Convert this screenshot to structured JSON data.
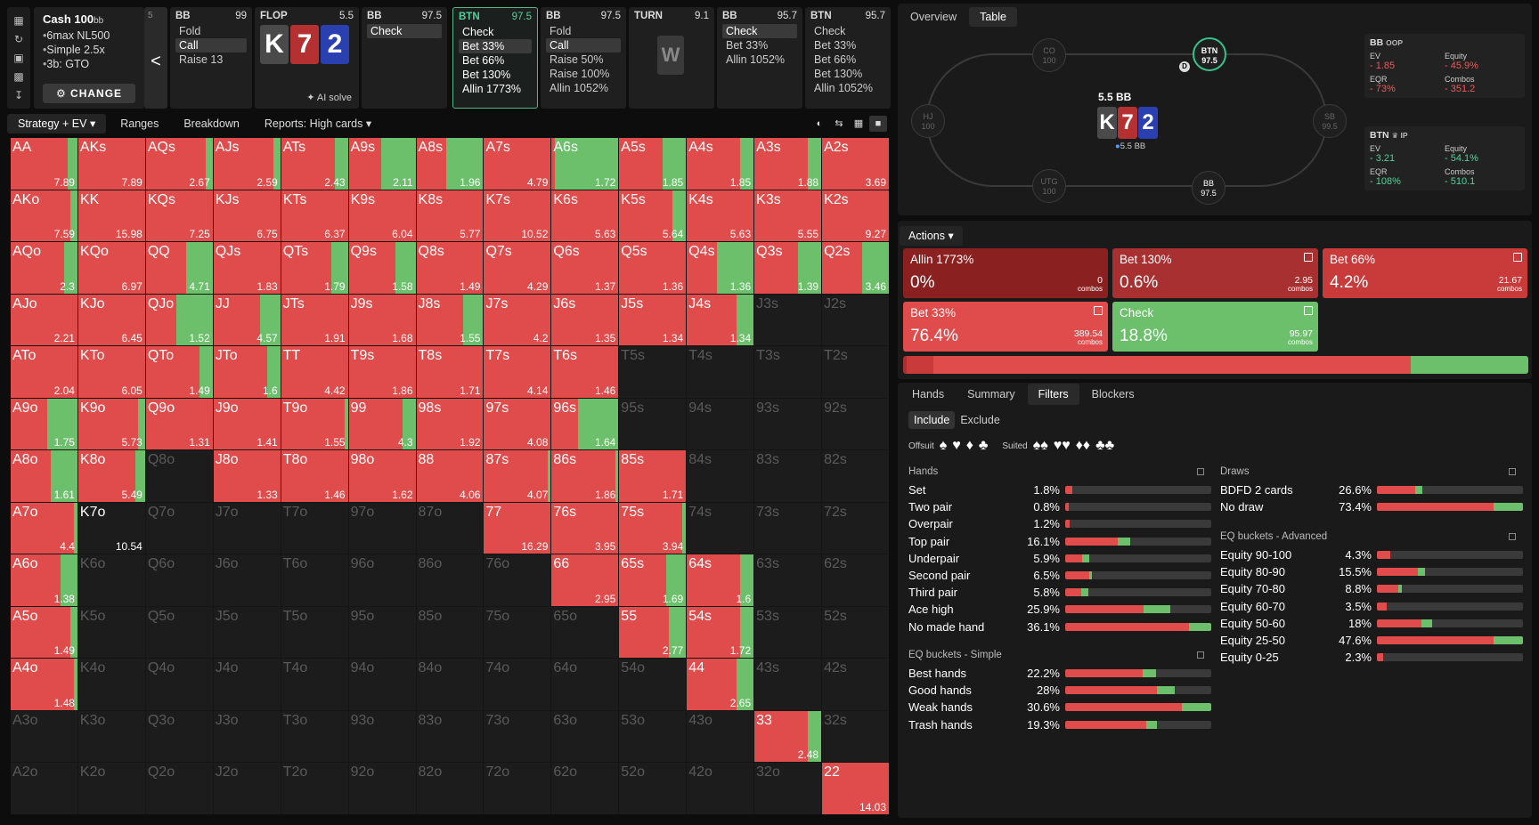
{
  "rail_icons": [
    "bookmark-icon",
    "history-icon",
    "save-icon",
    "gamepad-icon",
    "text-cursor-icon"
  ],
  "cash": {
    "title": "Cash",
    "stack": "100",
    "stack_unit": "bb",
    "items": [
      "6max NL500",
      "Simple 2.5x",
      "3b: GTO"
    ],
    "change_label": "CHANGE"
  },
  "back": {
    "num": "5",
    "arrow": "<"
  },
  "nodes": [
    {
      "player": "BB",
      "value": "99",
      "options": [
        "Fold",
        "Call",
        "Raise 13"
      ],
      "selected": 1
    },
    {
      "player": "BB",
      "value": "97.5",
      "options": [
        "Check"
      ],
      "selected": 0
    },
    {
      "player": "BTN",
      "value": "97.5",
      "options": [
        "Check",
        "Bet 33%",
        "Bet 66%",
        "Bet 130%",
        "Allin 1773%"
      ],
      "selected": 1,
      "active": true
    },
    {
      "player": "BB",
      "value": "97.5",
      "options": [
        "Fold",
        "Call",
        "Raise 50%",
        "Raise 100%",
        "Allin 1052%"
      ],
      "selected": 1
    },
    {
      "player": "BB",
      "value": "95.7",
      "options": [
        "Check",
        "Bet 33%",
        "Allin 1052%"
      ],
      "selected": 0
    },
    {
      "player": "BTN",
      "value": "95.7",
      "options": [
        "Check",
        "Bet 33%",
        "Bet 66%",
        "Bet 130%",
        "Allin 1052%"
      ],
      "selected": -1
    }
  ],
  "flop": {
    "label": "FLOP",
    "pot": "5.5",
    "cards": [
      "K",
      "7",
      "2"
    ],
    "ai_solve": "AI solve"
  },
  "turn": {
    "label": "TURN",
    "pot": "9.1",
    "card": "W"
  },
  "left_tabs": {
    "strategy": "Strategy + EV",
    "ranges": "Ranges",
    "breakdown": "Breakdown",
    "reports": "Reports: High cards"
  },
  "colors": {
    "bet": "#e04b4b",
    "check": "#6cc06c",
    "allin": "#8a2020",
    "bet130": "#a83030"
  },
  "matrix": [
    [
      "AA|0.85|7.89",
      "AKs|1|7.89",
      "AQs|0.9|2.67",
      "AJs|0.9|2.59",
      "ATs|0.8|2.43",
      "A9s|0.48|2.11",
      "A8s|0.45|1.96",
      "A7s|1|4.79",
      "A6s|0.05|1.72",
      "A5s|0.65|1.85",
      "A4s|0.8|1.85",
      "A3s|0.8|1.88",
      "A2s|1|3.69"
    ],
    [
      "AKo|0.9|7.59",
      "KK|1|15.98",
      "KQs|1|7.25",
      "KJs|1|6.75",
      "KTs|1|6.37",
      "K9s|1|6.04",
      "K8s|1|5.77",
      "K7s|1|10.52",
      "K6s|1|5.63",
      "K5s|0.8|5.64",
      "K4s|1|5.63",
      "K3s|1|5.55",
      "K2s|1|9.27"
    ],
    [
      "AQo|0.8|2.3",
      "KQo|1|6.97",
      "QQ|0.6|4.71",
      "QJs|1|1.83",
      "QTs|0.75|1.79",
      "Q9s|0.7|1.58",
      "Q8s|1|1.49",
      "Q7s|1|4.29",
      "Q6s|1|1.37",
      "Q5s|1|1.36",
      "Q4s|0.45|1.36",
      "Q3s|0.65|1.39",
      "Q2s|0.6|3.46"
    ],
    [
      "AJo|1|2.21",
      "KJo|1|6.45",
      "QJo|0.45|1.52",
      "JJ|0.7|4.57",
      "JTs|1|1.91",
      "J9s|1|1.68",
      "J8s|0.7|1.55",
      "J7s|1|4.2",
      "J6s|1|1.35",
      "J5s|1|1.34",
      "J4s|0.75|1.34",
      "J3s|0|",
      "J2s|0|"
    ],
    [
      "ATo|1|2.04",
      "KTo|1|6.05",
      "QTo|0.8|1.49",
      "JTo|0.8|1.6",
      "TT|1|4.42",
      "T9s|1|1.86",
      "T8s|1|1.71",
      "T7s|1|4.14",
      "T6s|1|1.46",
      "T5s|0|",
      "T4s|0|",
      "T3s|0|",
      "T2s|0|"
    ],
    [
      "A9o|0.55|1.75",
      "K9o|0.9|5.73",
      "Q9o|1|1.31",
      "J9o|1|1.41",
      "T9o|0.95|1.55",
      "99|0.8|4.3",
      "98s|1|1.92",
      "97s|1|4.08",
      "96s|0.4|1.64",
      "95s|0|",
      "94s|0|",
      "93s|0|",
      "92s|0|"
    ],
    [
      "A8o|0.6|1.61",
      "K8o|0.85|5.49",
      "Q8o|0|",
      "J8o|1|1.33",
      "T8o|1|1.46",
      "98o|1|1.62",
      "88|1|4.06",
      "87s|0.95|4.07",
      "86s|0.95|1.86",
      "85s|1|1.71",
      "84s|0|",
      "83s|0|",
      "82s|0|"
    ],
    [
      "A7o|0.95|4.4",
      "K7o|0|10.54",
      "Q7o|0|",
      "J7o|0|",
      "T7o|0|",
      "97o|0|",
      "87o|0|",
      "77|1|16.29",
      "76s|1|3.95",
      "75s|0.95|3.94",
      "74s|0|",
      "73s|0|",
      "72s|0|"
    ],
    [
      "A6o|0.75|1.38",
      "K6o|0|",
      "Q6o|0|",
      "J6o|0|",
      "T6o|0|",
      "96o|0|",
      "86o|0|",
      "76o|0|",
      "66|1|2.95",
      "65s|0.7|1.69",
      "64s|0.8|1.6",
      "63s|0|",
      "62s|0|"
    ],
    [
      "A5o|0.9|1.49",
      "K5o|0|",
      "Q5o|0|",
      "J5o|0|",
      "T5o|0|",
      "95o|0|",
      "85o|0|",
      "75o|0|",
      "65o|0|",
      "55|0.75|2.77",
      "54s|0.8|1.72",
      "53s|0|",
      "52s|0|"
    ],
    [
      "A4o|0.95|1.48",
      "K4o|0|",
      "Q4o|0|",
      "J4o|0|",
      "T4o|0|",
      "94o|0|",
      "84o|0|",
      "74o|0|",
      "64o|0|",
      "54o|0|",
      "44|0.75|2.65",
      "43s|0|",
      "42s|0|"
    ],
    [
      "A3o|0|",
      "K3o|0|",
      "Q3o|0|",
      "J3o|0|",
      "T3o|0|",
      "93o|0|",
      "83o|0|",
      "73o|0|",
      "63o|0|",
      "53o|0|",
      "43o|0|",
      "33|0.8|2.48",
      "32s|0|"
    ],
    [
      "A2o|0|",
      "K2o|0|",
      "Q2o|0|",
      "J2o|0|",
      "T2o|0|",
      "92o|0|",
      "82o|0|",
      "72o|0|",
      "62o|0|",
      "52o|0|",
      "42o|0|",
      "32o|0|",
      "22|1|14.03"
    ]
  ],
  "right_tabs": {
    "overview": "Overview",
    "table": "Table"
  },
  "table": {
    "pot": "5.5 BB",
    "pot_small": "5.5 BB",
    "cards": [
      "K",
      "7",
      "2"
    ],
    "seats": [
      {
        "pos": "CO",
        "stack": "100"
      },
      {
        "pos": "BTN",
        "stack": "97.5"
      },
      {
        "pos": "HJ",
        "stack": "100"
      },
      {
        "pos": "SB",
        "stack": "99.5"
      },
      {
        "pos": "UTG",
        "stack": "100"
      },
      {
        "pos": "BB",
        "stack": "97.5"
      }
    ],
    "dealer": "D"
  },
  "bb_stats": {
    "title": "BB",
    "role": "OOP",
    "ev_label": "EV",
    "ev": "- 1.85",
    "eq_label": "Equity",
    "eq": "- 45.9%",
    "eqr_label": "EQR",
    "eqr": "- 73%",
    "combos_label": "Combos",
    "combos": "- 351.2"
  },
  "btn_stats": {
    "title": "BTN",
    "role": "IP",
    "ev_label": "EV",
    "ev": "- 3.21",
    "eq_label": "Equity",
    "eq": "- 54.1%",
    "eqr_label": "EQR",
    "eqr": "- 108%",
    "combos_label": "Combos",
    "combos": "- 510.1"
  },
  "actions_label": "Actions",
  "actions": [
    {
      "name": "Allin 1773%",
      "pct": "0%",
      "combos": "0",
      "combos_label": "combos"
    },
    {
      "name": "Bet 130%",
      "pct": "0.6%",
      "combos": "2.95",
      "combos_label": "combos"
    },
    {
      "name": "Bet 66%",
      "pct": "4.2%",
      "combos": "21.67",
      "combos_label": "combos"
    },
    {
      "name": "Bet 33%",
      "pct": "76.4%",
      "combos": "389.54",
      "combos_label": "combos"
    },
    {
      "name": "Check",
      "pct": "18.8%",
      "combos": "95.97",
      "combos_label": "combos"
    }
  ],
  "strategy_bar": {
    "allin": 0,
    "bet130": 0.6,
    "bet66": 4.2,
    "bet33": 76.4,
    "check": 18.8
  },
  "bottom_tabs": {
    "hands": "Hands",
    "summary": "Summary",
    "filters": "Filters",
    "blockers": "Blockers"
  },
  "include": "Include",
  "exclude": "Exclude",
  "offsuit_label": "Offsuit",
  "suited_label": "Suited",
  "hands_title": "Hands",
  "hands": [
    [
      "Set",
      "1.8%",
      1.8,
      1,
      0
    ],
    [
      "Two pair",
      "0.8%",
      0.8,
      1,
      0
    ],
    [
      "Overpair",
      "1.2%",
      1.2,
      1,
      0
    ],
    [
      "Top pair",
      "16.1%",
      16.1,
      0.8,
      0.2
    ],
    [
      "Underpair",
      "5.9%",
      5.9,
      0.7,
      0.3
    ],
    [
      "Second pair",
      "6.5%",
      6.5,
      0.9,
      0.1
    ],
    [
      "Third pair",
      "5.8%",
      5.8,
      0.7,
      0.3
    ],
    [
      "Ace high",
      "25.9%",
      25.9,
      0.75,
      0.25
    ],
    [
      "No made hand",
      "36.1%",
      36.1,
      0.85,
      0.15
    ]
  ],
  "eqs_title": "EQ buckets - Simple",
  "eqs": [
    [
      "Best hands",
      "22.2%",
      62,
      0.86,
      0.14
    ],
    [
      "Good hands",
      "28%",
      75,
      0.84,
      0.16
    ],
    [
      "Weak hands",
      "30.6%",
      100,
      0.8,
      0.2
    ],
    [
      "Trash hands",
      "19.3%",
      63,
      0.88,
      0.12
    ]
  ],
  "draws_title": "Draws",
  "draws": [
    [
      "BDFD 2 cards",
      "26.6%",
      31,
      0.85,
      0.15
    ],
    [
      "No draw",
      "73.4%",
      100,
      0.8,
      0.2
    ]
  ],
  "eqa_title": "EQ buckets - Advanced",
  "eqa": [
    [
      "Equity 90-100",
      "4.3%",
      9,
      1,
      0
    ],
    [
      "Equity 80-90",
      "15.5%",
      33,
      0.85,
      0.15
    ],
    [
      "Equity 70-80",
      "8.8%",
      17,
      0.85,
      0.15
    ],
    [
      "Equity 60-70",
      "3.5%",
      7,
      1,
      0
    ],
    [
      "Equity 50-60",
      "18%",
      38,
      0.8,
      0.2
    ],
    [
      "Equity 25-50",
      "47.6%",
      100,
      0.8,
      0.2
    ],
    [
      "Equity 0-25",
      "2.3%",
      4,
      1,
      0
    ]
  ]
}
